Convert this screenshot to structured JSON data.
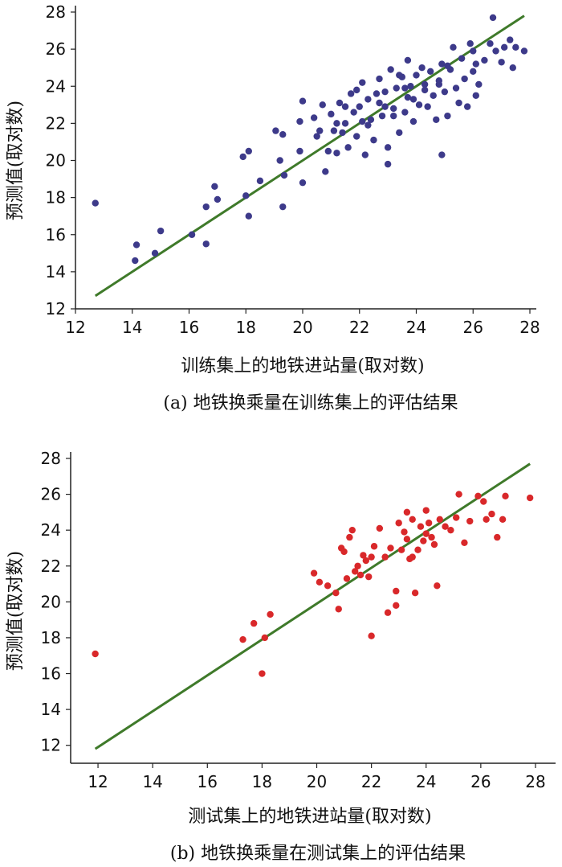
{
  "chart_data": [
    {
      "type": "scatter",
      "xlabel": "训练集上的地铁进站量(取对数)",
      "ylabel": "预测值(取对数)",
      "caption": "(a) 地铁换乘量在训练集上的评估结果",
      "xlim": [
        12,
        28
      ],
      "ylim": [
        12,
        28
      ],
      "xticks": [
        "12",
        "14",
        "16",
        "18",
        "20",
        "22",
        "24",
        "26",
        "28"
      ],
      "yticks": [
        "12",
        "14",
        "16",
        "18",
        "20",
        "22",
        "24",
        "26",
        "28"
      ],
      "point_color": "#3d3a8a",
      "line_color": "#3f7a2a",
      "fit_line": [
        [
          12.7,
          12.7
        ],
        [
          27.8,
          27.8
        ]
      ],
      "points": [
        [
          12.7,
          17.7
        ],
        [
          14.15,
          15.45
        ],
        [
          14.1,
          14.6
        ],
        [
          14.8,
          15.0
        ],
        [
          15.0,
          16.2
        ],
        [
          16.1,
          16.0
        ],
        [
          16.6,
          15.5
        ],
        [
          16.6,
          17.5
        ],
        [
          16.9,
          18.6
        ],
        [
          17.0,
          17.9
        ],
        [
          17.9,
          20.2
        ],
        [
          18.1,
          20.5
        ],
        [
          18.0,
          18.1
        ],
        [
          18.1,
          17.0
        ],
        [
          18.5,
          18.9
        ],
        [
          19.05,
          21.6
        ],
        [
          19.2,
          20.0
        ],
        [
          19.3,
          21.4
        ],
        [
          19.35,
          19.2
        ],
        [
          19.3,
          17.5
        ],
        [
          19.9,
          20.5
        ],
        [
          19.9,
          22.1
        ],
        [
          20.0,
          23.2
        ],
        [
          20.0,
          18.8
        ],
        [
          20.4,
          22.3
        ],
        [
          20.5,
          21.3
        ],
        [
          20.7,
          23.0
        ],
        [
          20.8,
          19.4
        ],
        [
          20.9,
          20.5
        ],
        [
          21.0,
          22.5
        ],
        [
          21.1,
          21.6
        ],
        [
          21.2,
          20.4
        ],
        [
          21.3,
          23.1
        ],
        [
          21.4,
          21.5
        ],
        [
          21.5,
          22.0
        ],
        [
          21.6,
          20.7
        ],
        [
          21.7,
          23.6
        ],
        [
          21.8,
          22.6
        ],
        [
          21.9,
          21.3
        ],
        [
          22.0,
          22.9
        ],
        [
          22.1,
          24.2
        ],
        [
          22.2,
          20.3
        ],
        [
          22.3,
          23.3
        ],
        [
          22.4,
          22.2
        ],
        [
          22.5,
          21.1
        ],
        [
          22.6,
          23.6
        ],
        [
          22.7,
          24.4
        ],
        [
          22.8,
          22.4
        ],
        [
          22.9,
          23.7
        ],
        [
          23.0,
          20.7
        ],
        [
          23.0,
          19.8
        ],
        [
          23.1,
          24.9
        ],
        [
          23.2,
          22.8
        ],
        [
          23.3,
          23.9
        ],
        [
          23.4,
          21.5
        ],
        [
          23.5,
          24.5
        ],
        [
          23.6,
          22.6
        ],
        [
          23.7,
          23.4
        ],
        [
          23.7,
          25.4
        ],
        [
          23.8,
          24.0
        ],
        [
          23.9,
          22.1
        ],
        [
          24.0,
          24.6
        ],
        [
          24.1,
          23.0
        ],
        [
          24.2,
          25.0
        ],
        [
          24.3,
          24.1
        ],
        [
          24.4,
          22.9
        ],
        [
          24.5,
          24.8
        ],
        [
          24.6,
          23.5
        ],
        [
          24.7,
          22.2
        ],
        [
          24.8,
          24.3
        ],
        [
          24.9,
          25.2
        ],
        [
          24.9,
          20.3
        ],
        [
          25.0,
          23.7
        ],
        [
          25.1,
          22.4
        ],
        [
          25.2,
          24.9
        ],
        [
          25.3,
          26.1
        ],
        [
          25.4,
          23.9
        ],
        [
          25.5,
          23.1
        ],
        [
          25.6,
          25.5
        ],
        [
          25.7,
          24.4
        ],
        [
          25.8,
          22.9
        ],
        [
          25.9,
          26.3
        ],
        [
          26.0,
          24.8
        ],
        [
          26.1,
          25.2
        ],
        [
          26.1,
          23.5
        ],
        [
          26.2,
          24.1
        ],
        [
          26.4,
          25.4
        ],
        [
          26.6,
          26.3
        ],
        [
          26.7,
          27.7
        ],
        [
          26.8,
          25.9
        ],
        [
          27.0,
          25.3
        ],
        [
          27.1,
          26.1
        ],
        [
          27.3,
          26.5
        ],
        [
          27.4,
          25.0
        ],
        [
          27.5,
          26.1
        ],
        [
          27.8,
          25.9
        ],
        [
          23.2,
          22.4
        ],
        [
          22.7,
          23.1
        ],
        [
          21.5,
          22.9
        ],
        [
          22.3,
          21.9
        ],
        [
          23.9,
          23.3
        ],
        [
          24.3,
          23.8
        ],
        [
          22.9,
          22.9
        ],
        [
          21.9,
          23.8
        ],
        [
          23.6,
          23.9
        ],
        [
          24.8,
          24.1
        ],
        [
          25.1,
          25.1
        ],
        [
          26.0,
          25.9
        ],
        [
          23.4,
          24.6
        ],
        [
          22.1,
          22.1
        ],
        [
          21.2,
          22.0
        ],
        [
          20.6,
          21.6
        ]
      ]
    },
    {
      "type": "scatter",
      "xlabel": "测试集上的地铁进站量(取对数)",
      "ylabel": "预测值(取对数)",
      "caption": "(b) 地铁换乘量在测试集上的评估结果",
      "xlim": [
        11,
        28.5
      ],
      "ylim": [
        11,
        28
      ],
      "xticks": [
        "12",
        "14",
        "16",
        "18",
        "20",
        "22",
        "24",
        "26",
        "28"
      ],
      "yticks": [
        "12",
        "14",
        "16",
        "18",
        "20",
        "22",
        "24",
        "26",
        "28"
      ],
      "point_color": "#d9282a",
      "line_color": "#3f7a2a",
      "fit_line": [
        [
          11.9,
          11.8
        ],
        [
          27.8,
          27.7
        ]
      ],
      "points": [
        [
          11.9,
          17.1
        ],
        [
          17.3,
          17.9
        ],
        [
          17.7,
          18.8
        ],
        [
          18.0,
          16.0
        ],
        [
          18.1,
          18.0
        ],
        [
          18.3,
          19.3
        ],
        [
          19.9,
          21.6
        ],
        [
          20.1,
          21.1
        ],
        [
          20.4,
          20.9
        ],
        [
          20.7,
          20.5
        ],
        [
          20.8,
          19.6
        ],
        [
          20.9,
          23.0
        ],
        [
          21.0,
          22.8
        ],
        [
          21.1,
          21.3
        ],
        [
          21.2,
          23.6
        ],
        [
          21.3,
          24.0
        ],
        [
          21.4,
          21.7
        ],
        [
          21.5,
          22.0
        ],
        [
          21.6,
          21.5
        ],
        [
          21.7,
          22.6
        ],
        [
          21.8,
          22.3
        ],
        [
          21.9,
          21.4
        ],
        [
          22.0,
          22.5
        ],
        [
          22.0,
          18.1
        ],
        [
          22.1,
          23.1
        ],
        [
          22.3,
          24.1
        ],
        [
          22.5,
          22.5
        ],
        [
          22.6,
          19.4
        ],
        [
          22.7,
          23.0
        ],
        [
          22.9,
          20.6
        ],
        [
          22.9,
          19.8
        ],
        [
          23.0,
          24.4
        ],
        [
          23.1,
          22.9
        ],
        [
          23.2,
          23.9
        ],
        [
          23.3,
          25.0
        ],
        [
          23.4,
          22.4
        ],
        [
          23.5,
          24.6
        ],
        [
          23.6,
          20.5
        ],
        [
          23.7,
          22.9
        ],
        [
          23.8,
          24.2
        ],
        [
          23.9,
          23.4
        ],
        [
          24.0,
          25.1
        ],
        [
          24.1,
          24.4
        ],
        [
          24.2,
          23.6
        ],
        [
          24.3,
          23.2
        ],
        [
          24.4,
          20.9
        ],
        [
          24.5,
          24.6
        ],
        [
          24.7,
          24.2
        ],
        [
          24.9,
          24.0
        ],
        [
          25.1,
          24.7
        ],
        [
          25.2,
          26.0
        ],
        [
          25.4,
          23.3
        ],
        [
          25.6,
          24.5
        ],
        [
          25.9,
          25.9
        ],
        [
          26.1,
          25.6
        ],
        [
          26.2,
          24.6
        ],
        [
          26.4,
          24.9
        ],
        [
          26.6,
          23.6
        ],
        [
          26.8,
          24.6
        ],
        [
          26.9,
          25.9
        ],
        [
          27.8,
          25.8
        ],
        [
          23.5,
          22.5
        ],
        [
          24.0,
          23.8
        ],
        [
          23.3,
          23.5
        ]
      ]
    }
  ]
}
